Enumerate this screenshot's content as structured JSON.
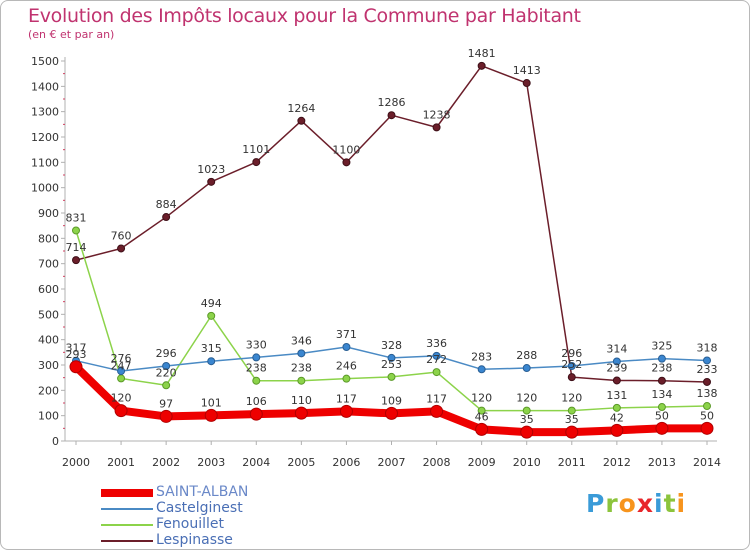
{
  "title": "Evolution des Impôts locaux pour la Commune par Habitant",
  "subtitle": "(en € et par an)",
  "logo": {
    "letters": [
      {
        "ch": "P",
        "color": "#3a9bd8"
      },
      {
        "ch": "r",
        "color": "#8cc43c"
      },
      {
        "ch": "o",
        "color": "#f7941d"
      },
      {
        "ch": "x",
        "color": "#e8262b"
      },
      {
        "ch": "i",
        "color": "#3a9bd8"
      },
      {
        "ch": "t",
        "color": "#8cc43c"
      },
      {
        "ch": "i",
        "color": "#f7941d"
      }
    ]
  },
  "chart_data": {
    "type": "line",
    "x": [
      "2000",
      "2001",
      "2002",
      "2003",
      "2004",
      "2005",
      "2006",
      "2007",
      "2008",
      "2009",
      "2010",
      "2011",
      "2012",
      "2013",
      "2014"
    ],
    "ylim": [
      0,
      1500
    ],
    "yticks": [
      0,
      100,
      200,
      300,
      400,
      500,
      600,
      700,
      800,
      900,
      1000,
      1100,
      1200,
      1300,
      1400,
      1500
    ],
    "grid": false,
    "legend_position": "bottom-left",
    "series": [
      {
        "name": "SAINT-ALBAN",
        "color": "#ee0000",
        "values": [
          293,
          120,
          97,
          101,
          106,
          110,
          117,
          109,
          117,
          46,
          35,
          35,
          42,
          50,
          50
        ]
      },
      {
        "name": "Castelginest",
        "color": "#4a8ac4",
        "values": [
          317,
          276,
          296,
          315,
          330,
          346,
          371,
          328,
          336,
          283,
          288,
          296,
          314,
          325,
          318
        ]
      },
      {
        "name": "Fenouillet",
        "color": "#8cd34a",
        "values": [
          831,
          247,
          220,
          494,
          238,
          238,
          246,
          253,
          272,
          120,
          120,
          120,
          131,
          134,
          138
        ]
      },
      {
        "name": "Lespinasse",
        "color": "#6b1e2a",
        "values": [
          714,
          760,
          884,
          1023,
          1101,
          1264,
          1100,
          1286,
          1238,
          1481,
          1413,
          252,
          239,
          238,
          233
        ]
      }
    ]
  }
}
